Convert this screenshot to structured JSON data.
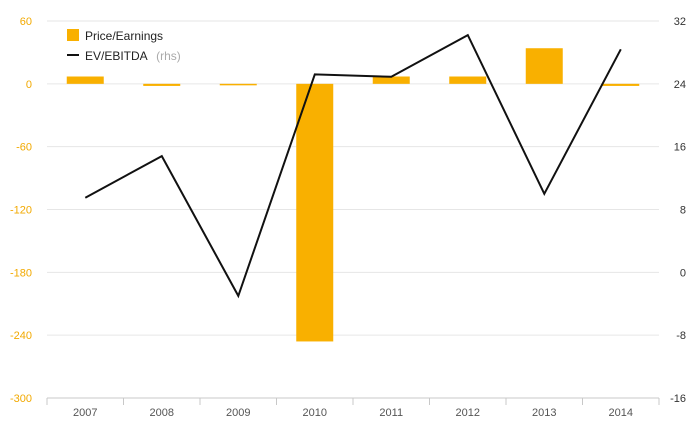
{
  "chart_data": {
    "type": "bar",
    "categories": [
      "2007",
      "2008",
      "2009",
      "2010",
      "2011",
      "2012",
      "2013",
      "2014"
    ],
    "series": [
      {
        "name": "Price/Earnings",
        "type": "bar",
        "axis": "left",
        "color": "#f9b000",
        "values": [
          7,
          -2,
          -1,
          -246,
          7,
          7,
          34,
          -2
        ]
      },
      {
        "name": "EV/EBITDA",
        "name_suffix": "(rhs)",
        "type": "line",
        "axis": "right",
        "color": "#111111",
        "values": [
          9.5,
          14.8,
          -3,
          25.2,
          24.9,
          30.2,
          10,
          28.4
        ]
      }
    ],
    "y_left": {
      "ylim": [
        -300,
        60
      ],
      "ticks": [
        60,
        0,
        -60,
        -120,
        -180,
        -240,
        -300
      ],
      "color": "#f2a900"
    },
    "y_right": {
      "ylim": [
        -16,
        32
      ],
      "ticks": [
        32,
        24,
        16,
        8,
        0,
        -8,
        -16
      ]
    },
    "legend": {
      "position": "top-left"
    },
    "grid": true
  }
}
